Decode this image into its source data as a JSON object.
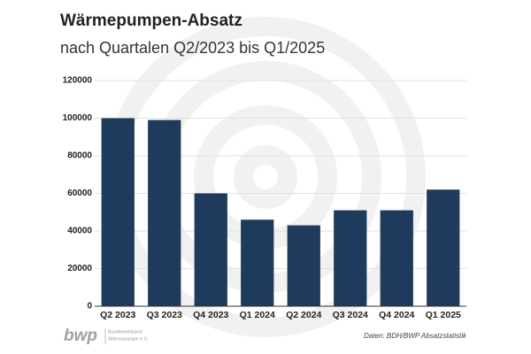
{
  "chart_data": {
    "type": "bar",
    "title": "Wärmepumpen-Absatz",
    "subtitle": "nach Quartalen Q2/2023 bis Q1/2025",
    "categories": [
      "Q2 2023",
      "Q3 2023",
      "Q4 2023",
      "Q1 2024",
      "Q2 2024",
      "Q3 2024",
      "Q4 2024",
      "Q1 2025"
    ],
    "values": [
      100000,
      99000,
      60000,
      46000,
      43000,
      51000,
      51000,
      62000
    ],
    "color": "#1e3a5c",
    "ylim": [
      0,
      120000
    ],
    "yticks": [
      0,
      20000,
      40000,
      60000,
      80000,
      100000,
      120000
    ],
    "grid": true,
    "source": "Daten: BDH/BWP Absatzstatistik",
    "logo": {
      "text": "bwp",
      "lines": [
        "Bundesverband",
        "Wärmepumpe e.V."
      ]
    }
  }
}
